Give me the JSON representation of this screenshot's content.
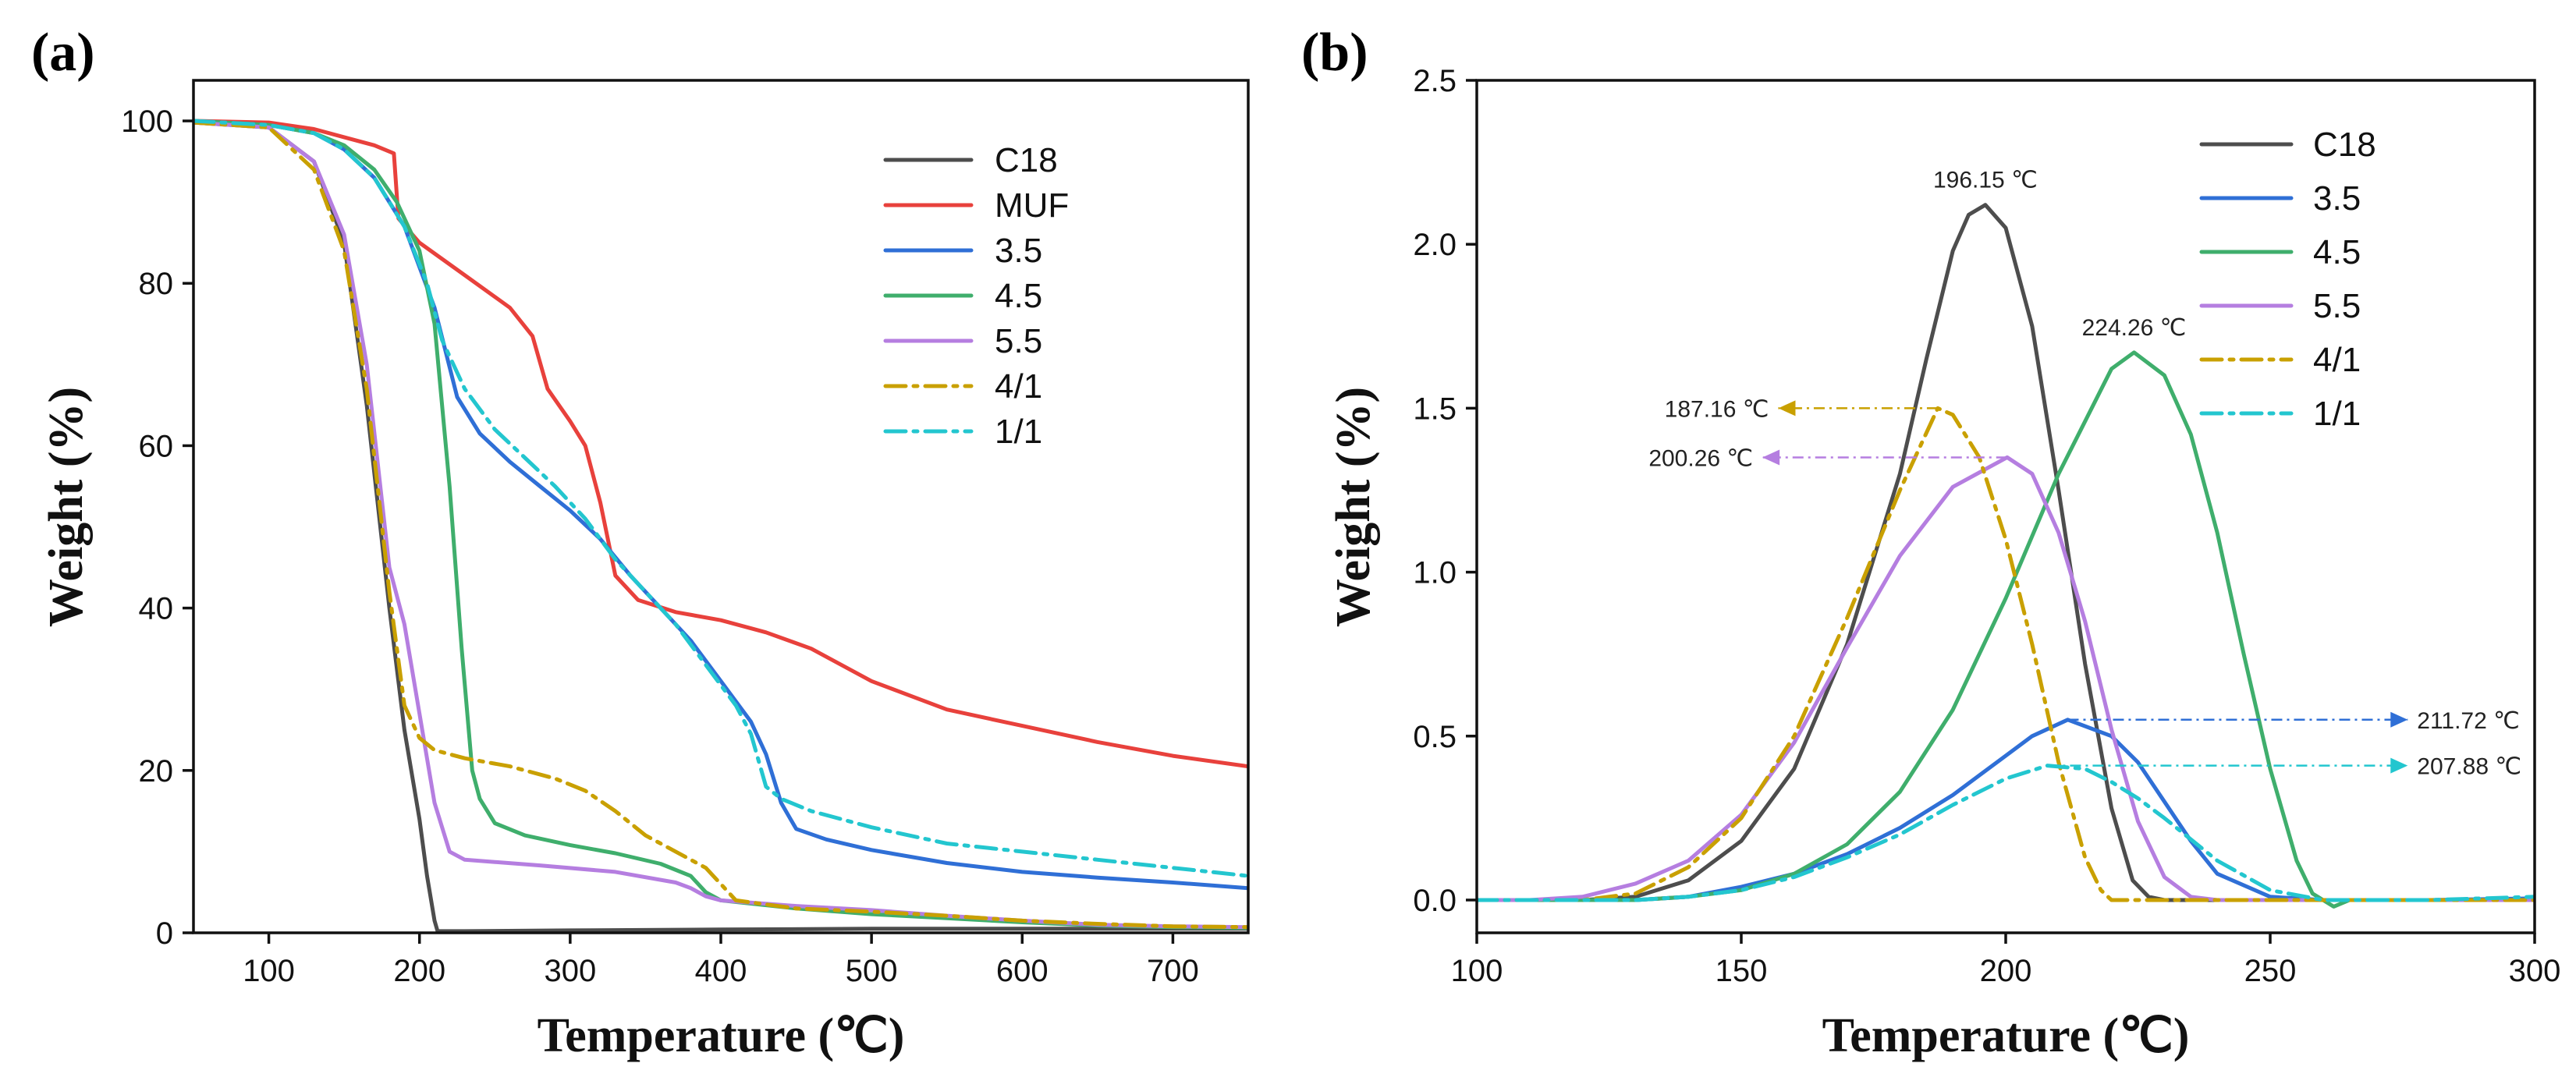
{
  "chart_data": [
    {
      "type": "line",
      "panel_label": "(a)",
      "xlabel": "Temperature (℃)",
      "ylabel": "Weight (%)",
      "xlim": [
        50,
        750
      ],
      "ylim": [
        0,
        105
      ],
      "xticks": [
        100,
        200,
        300,
        400,
        500,
        600,
        700
      ],
      "yticks": [
        0,
        20,
        40,
        60,
        80,
        100
      ],
      "legend_position": "top-right",
      "series": [
        {
          "name": "C18",
          "color": "#4d4d4d",
          "dash": "solid",
          "x": [
            50,
            100,
            130,
            150,
            165,
            180,
            190,
            200,
            205,
            210,
            212,
            230,
            300,
            400,
            500,
            600,
            750
          ],
          "y": [
            99.8,
            99.2,
            95,
            85,
            65,
            40,
            25,
            14,
            7,
            1.5,
            0.2,
            0.2,
            0.3,
            0.4,
            0.5,
            0.5,
            0.5
          ]
        },
        {
          "name": "MUF",
          "color": "#e8413c",
          "dash": "solid",
          "x": [
            50,
            100,
            130,
            150,
            170,
            183,
            186,
            200,
            230,
            260,
            275,
            285,
            300,
            310,
            320,
            330,
            345,
            370,
            400,
            430,
            460,
            500,
            550,
            600,
            650,
            700,
            750
          ],
          "y": [
            100,
            99.8,
            99,
            98,
            97,
            96,
            88,
            85,
            81,
            77,
            73.5,
            67,
            63,
            60,
            53,
            44,
            41,
            39.5,
            38.5,
            37,
            35,
            31,
            27.5,
            25.5,
            23.5,
            21.8,
            20.5
          ]
        },
        {
          "name": "3.5",
          "color": "#2f6fd6",
          "dash": "solid",
          "x": [
            50,
            100,
            130,
            150,
            170,
            190,
            210,
            225,
            240,
            260,
            280,
            300,
            320,
            340,
            360,
            380,
            400,
            420,
            430,
            440,
            450,
            470,
            500,
            550,
            600,
            650,
            700,
            750
          ],
          "y": [
            100,
            99.5,
            98.5,
            96.5,
            93,
            87,
            77,
            66,
            61.5,
            58,
            55,
            52,
            48.5,
            44,
            40,
            36,
            31,
            26,
            22,
            16,
            12.8,
            11.5,
            10.2,
            8.6,
            7.5,
            6.8,
            6.2,
            5.5
          ]
        },
        {
          "name": "4.5",
          "color": "#3fae6c",
          "dash": "solid",
          "x": [
            50,
            100,
            130,
            150,
            170,
            185,
            200,
            210,
            220,
            228,
            235,
            240,
            250,
            270,
            300,
            330,
            360,
            380,
            390,
            400,
            450,
            500,
            550,
            600,
            650,
            700,
            750
          ],
          "y": [
            100,
            99.5,
            98.5,
            97,
            94,
            90,
            84,
            75,
            55,
            35,
            20,
            16.5,
            13.5,
            12,
            10.8,
            9.8,
            8.5,
            7,
            5,
            4,
            3,
            2.3,
            1.8,
            1.3,
            0.9,
            0.7,
            0.6
          ]
        },
        {
          "name": "5.5",
          "color": "#b57ee0",
          "dash": "solid",
          "x": [
            50,
            100,
            130,
            150,
            165,
            180,
            190,
            200,
            210,
            220,
            230,
            280,
            330,
            370,
            380,
            390,
            400,
            450,
            500,
            550,
            600,
            650,
            700,
            750
          ],
          "y": [
            99.8,
            99.2,
            95,
            86,
            70,
            45,
            38,
            27,
            16,
            10,
            9,
            8.3,
            7.5,
            6.2,
            5.5,
            4.5,
            4,
            3.3,
            2.8,
            2.1,
            1.5,
            1,
            0.8,
            0.7
          ]
        },
        {
          "name": "4/1",
          "color": "#c9a000",
          "dash": "dashdot",
          "x": [
            50,
            100,
            130,
            150,
            165,
            180,
            190,
            200,
            210,
            230,
            260,
            290,
            310,
            330,
            350,
            370,
            390,
            400,
            410,
            450,
            500,
            550,
            600,
            650,
            700,
            750
          ],
          "y": [
            99.8,
            99.2,
            94,
            84,
            67,
            42,
            28,
            24,
            22.5,
            21.5,
            20.5,
            19,
            17.5,
            15,
            12,
            10,
            8,
            6,
            4,
            3,
            2.6,
            2.1,
            1.5,
            1.1,
            0.8,
            0.7
          ]
        },
        {
          "name": "1/1",
          "color": "#23c6cf",
          "dash": "dashdot",
          "x": [
            50,
            100,
            130,
            150,
            170,
            190,
            205,
            215,
            230,
            250,
            270,
            290,
            310,
            330,
            350,
            370,
            390,
            410,
            420,
            430,
            440,
            460,
            500,
            550,
            600,
            650,
            700,
            750
          ],
          "y": [
            100,
            99.5,
            98.5,
            96.5,
            93,
            87,
            80,
            73,
            67,
            62,
            58.5,
            55,
            51,
            46,
            42,
            38,
            33,
            28,
            24.5,
            18,
            16.5,
            15,
            13,
            11,
            10,
            9,
            8,
            7
          ]
        }
      ]
    },
    {
      "type": "line",
      "panel_label": "(b)",
      "xlabel": "Temperature (℃)",
      "ylabel": "Weight (%)",
      "xlim": [
        100,
        300
      ],
      "ylim": [
        -0.1,
        2.5
      ],
      "xticks": [
        100,
        150,
        200,
        250,
        300
      ],
      "yticks": [
        0.0,
        0.5,
        1.0,
        1.5,
        2.0,
        2.5
      ],
      "legend_position": "top-right",
      "series": [
        {
          "name": "C18",
          "color": "#4d4d4d",
          "dash": "solid",
          "x": [
            100,
            120,
            130,
            140,
            150,
            160,
            170,
            180,
            185,
            190,
            193,
            196.15,
            200,
            205,
            210,
            215,
            220,
            224,
            227,
            230,
            240,
            260,
            280,
            300
          ],
          "y": [
            0,
            0,
            0.01,
            0.06,
            0.18,
            0.4,
            0.78,
            1.3,
            1.65,
            1.98,
            2.09,
            2.12,
            2.05,
            1.75,
            1.25,
            0.72,
            0.28,
            0.06,
            0.01,
            0,
            0,
            0,
            0,
            0
          ]
        },
        {
          "name": "3.5",
          "color": "#2f6fd6",
          "dash": "solid",
          "x": [
            100,
            130,
            140,
            150,
            160,
            170,
            180,
            190,
            200,
            205,
            211.72,
            220,
            225,
            230,
            235,
            240,
            250,
            260,
            280,
            300
          ],
          "y": [
            0,
            0,
            0.01,
            0.04,
            0.08,
            0.14,
            0.22,
            0.32,
            0.44,
            0.5,
            0.55,
            0.5,
            0.42,
            0.3,
            0.18,
            0.08,
            0.01,
            0,
            0,
            0.005
          ]
        },
        {
          "name": "4.5",
          "color": "#3fae6c",
          "dash": "solid",
          "x": [
            100,
            130,
            140,
            150,
            160,
            170,
            180,
            190,
            200,
            210,
            220,
            224.26,
            230,
            235,
            240,
            245,
            250,
            255,
            258,
            262,
            265,
            270,
            280,
            290,
            300
          ],
          "y": [
            0,
            0,
            0.01,
            0.03,
            0.08,
            0.17,
            0.33,
            0.58,
            0.92,
            1.3,
            1.62,
            1.67,
            1.6,
            1.42,
            1.12,
            0.75,
            0.4,
            0.12,
            0.02,
            -0.02,
            0,
            0,
            0,
            0,
            0
          ]
        },
        {
          "name": "5.5",
          "color": "#b57ee0",
          "dash": "solid",
          "x": [
            100,
            110,
            120,
            130,
            140,
            150,
            160,
            170,
            180,
            190,
            200.26,
            205,
            210,
            215,
            220,
            225,
            230,
            235,
            240,
            260,
            280,
            300
          ],
          "y": [
            0,
            0,
            0.01,
            0.05,
            0.12,
            0.26,
            0.48,
            0.77,
            1.05,
            1.26,
            1.35,
            1.3,
            1.12,
            0.85,
            0.52,
            0.24,
            0.07,
            0.01,
            0,
            0,
            0,
            0
          ]
        },
        {
          "name": "4/1",
          "color": "#c9a000",
          "dash": "dashdot",
          "x": [
            100,
            120,
            130,
            140,
            150,
            160,
            170,
            180,
            187.16,
            190,
            195,
            200,
            205,
            210,
            215,
            218,
            220,
            230,
            260,
            300
          ],
          "y": [
            0,
            0,
            0.02,
            0.1,
            0.25,
            0.5,
            0.86,
            1.25,
            1.5,
            1.48,
            1.35,
            1.1,
            0.78,
            0.42,
            0.13,
            0.03,
            0,
            0,
            0,
            0
          ]
        },
        {
          "name": "1/1",
          "color": "#23c6cf",
          "dash": "dashdot",
          "x": [
            100,
            130,
            140,
            150,
            160,
            170,
            180,
            190,
            200,
            207.88,
            215,
            220,
            225,
            230,
            240,
            250,
            260,
            280,
            300
          ],
          "y": [
            0,
            0,
            0.01,
            0.03,
            0.07,
            0.13,
            0.2,
            0.29,
            0.37,
            0.41,
            0.4,
            0.36,
            0.31,
            0.25,
            0.12,
            0.03,
            0,
            0,
            0.01
          ]
        }
      ],
      "annotations": [
        {
          "text": "196.15 ℃",
          "series": "C18",
          "peak_x": 196.15,
          "peak_y": 2.12,
          "arrow": "none"
        },
        {
          "text": "224.26 ℃",
          "series": "4.5",
          "peak_x": 224.26,
          "peak_y": 1.67,
          "arrow": "none"
        },
        {
          "text": "187.16 ℃",
          "series": "4/1",
          "peak_x": 187.16,
          "peak_y": 1.5,
          "arrow": "left",
          "arrow_to_x": 157
        },
        {
          "text": "200.26 ℃",
          "series": "5.5",
          "peak_x": 200.26,
          "peak_y": 1.35,
          "arrow": "left",
          "arrow_to_x": 154
        },
        {
          "text": "211.72 ℃",
          "series": "3.5",
          "peak_x": 211.72,
          "peak_y": 0.55,
          "arrow": "right",
          "arrow_to_x": 276
        },
        {
          "text": "207.88 ℃",
          "series": "1/1",
          "peak_x": 207.88,
          "peak_y": 0.41,
          "arrow": "right",
          "arrow_to_x": 276
        }
      ]
    }
  ]
}
